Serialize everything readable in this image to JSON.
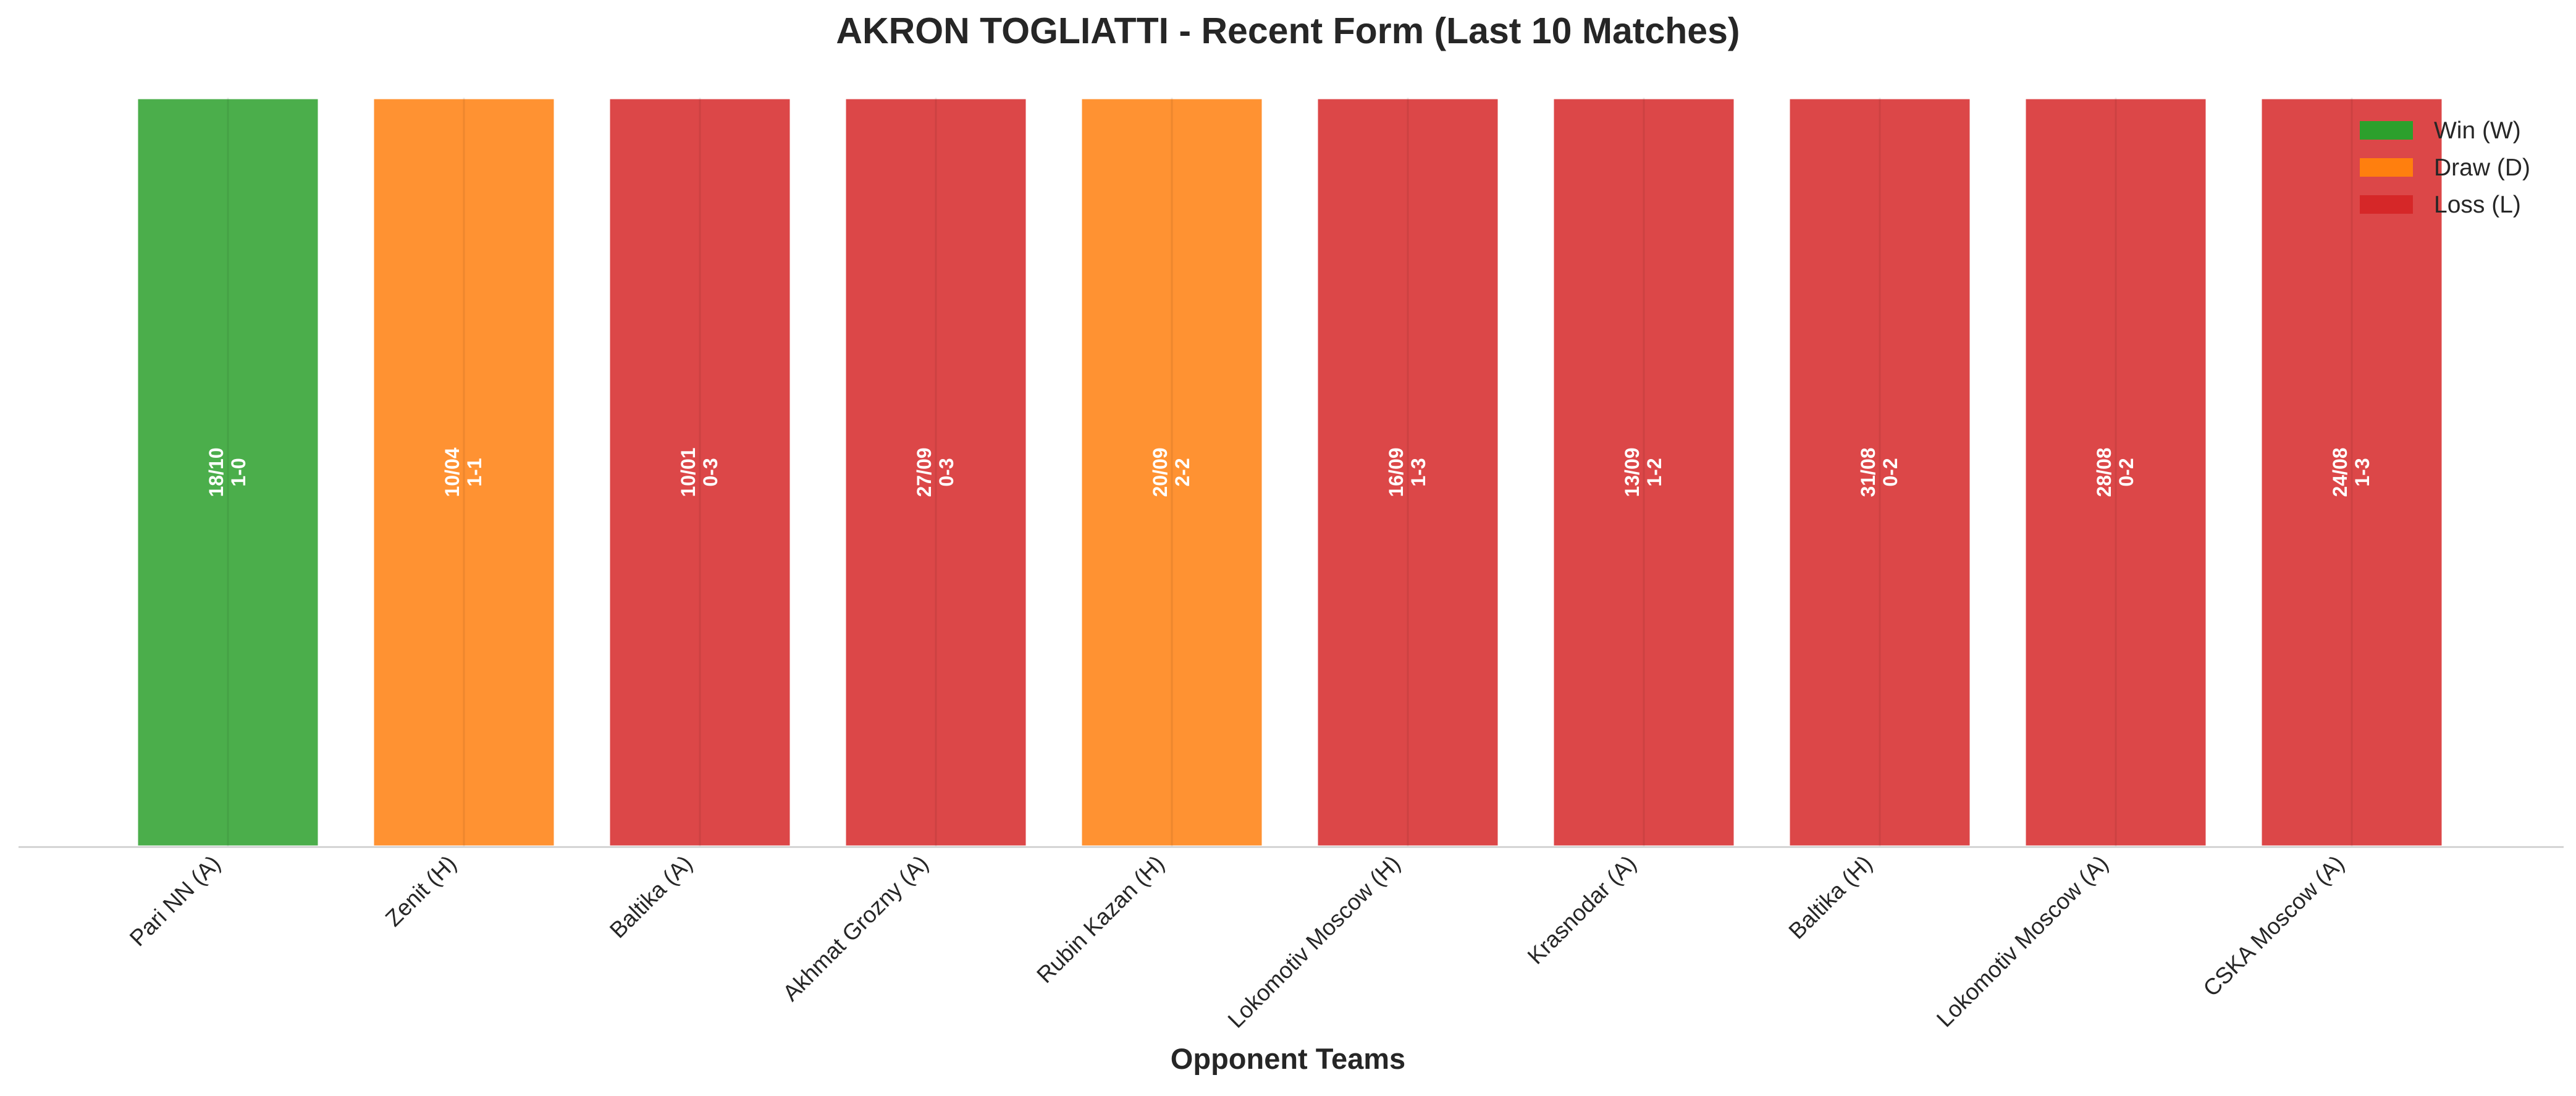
{
  "chart_data": {
    "type": "bar",
    "title": "AKRON TOGLIATTI - Recent Form (Last 10 Matches)",
    "xlabel": "Opponent Teams",
    "ylabel": "",
    "categories": [
      "Pari NN (A)",
      "Zenit (H)",
      "Baltika (A)",
      "Akhmat Grozny (A)",
      "Rubin Kazan (H)",
      "Lokomotiv Moscow (H)",
      "Krasnodar (A)",
      "Baltika (H)",
      "Lokomotiv Moscow (A)",
      "CSKA Moscow (A)"
    ],
    "values": [
      1,
      1,
      1,
      1,
      1,
      1,
      1,
      1,
      1,
      1
    ],
    "results": [
      "W",
      "D",
      "L",
      "L",
      "D",
      "L",
      "L",
      "L",
      "L",
      "L"
    ],
    "dates": [
      "18/10",
      "10/04",
      "10/01",
      "27/09",
      "20/09",
      "16/09",
      "13/09",
      "31/08",
      "28/08",
      "24/08"
    ],
    "scores": [
      "1-0",
      "1-1",
      "0-3",
      "0-3",
      "2-2",
      "1-3",
      "1-2",
      "0-2",
      "0-2",
      "1-3"
    ],
    "ylim": [
      0,
      1.0
    ],
    "grid": false,
    "legend": {
      "position": "top-right",
      "entries": [
        {
          "key": "W",
          "label": "Win (W)",
          "color": "#2ca02c"
        },
        {
          "key": "D",
          "label": "Draw (D)",
          "color": "#ff7f0e"
        },
        {
          "key": "L",
          "label": "Loss (L)",
          "color": "#d62728"
        }
      ]
    }
  }
}
